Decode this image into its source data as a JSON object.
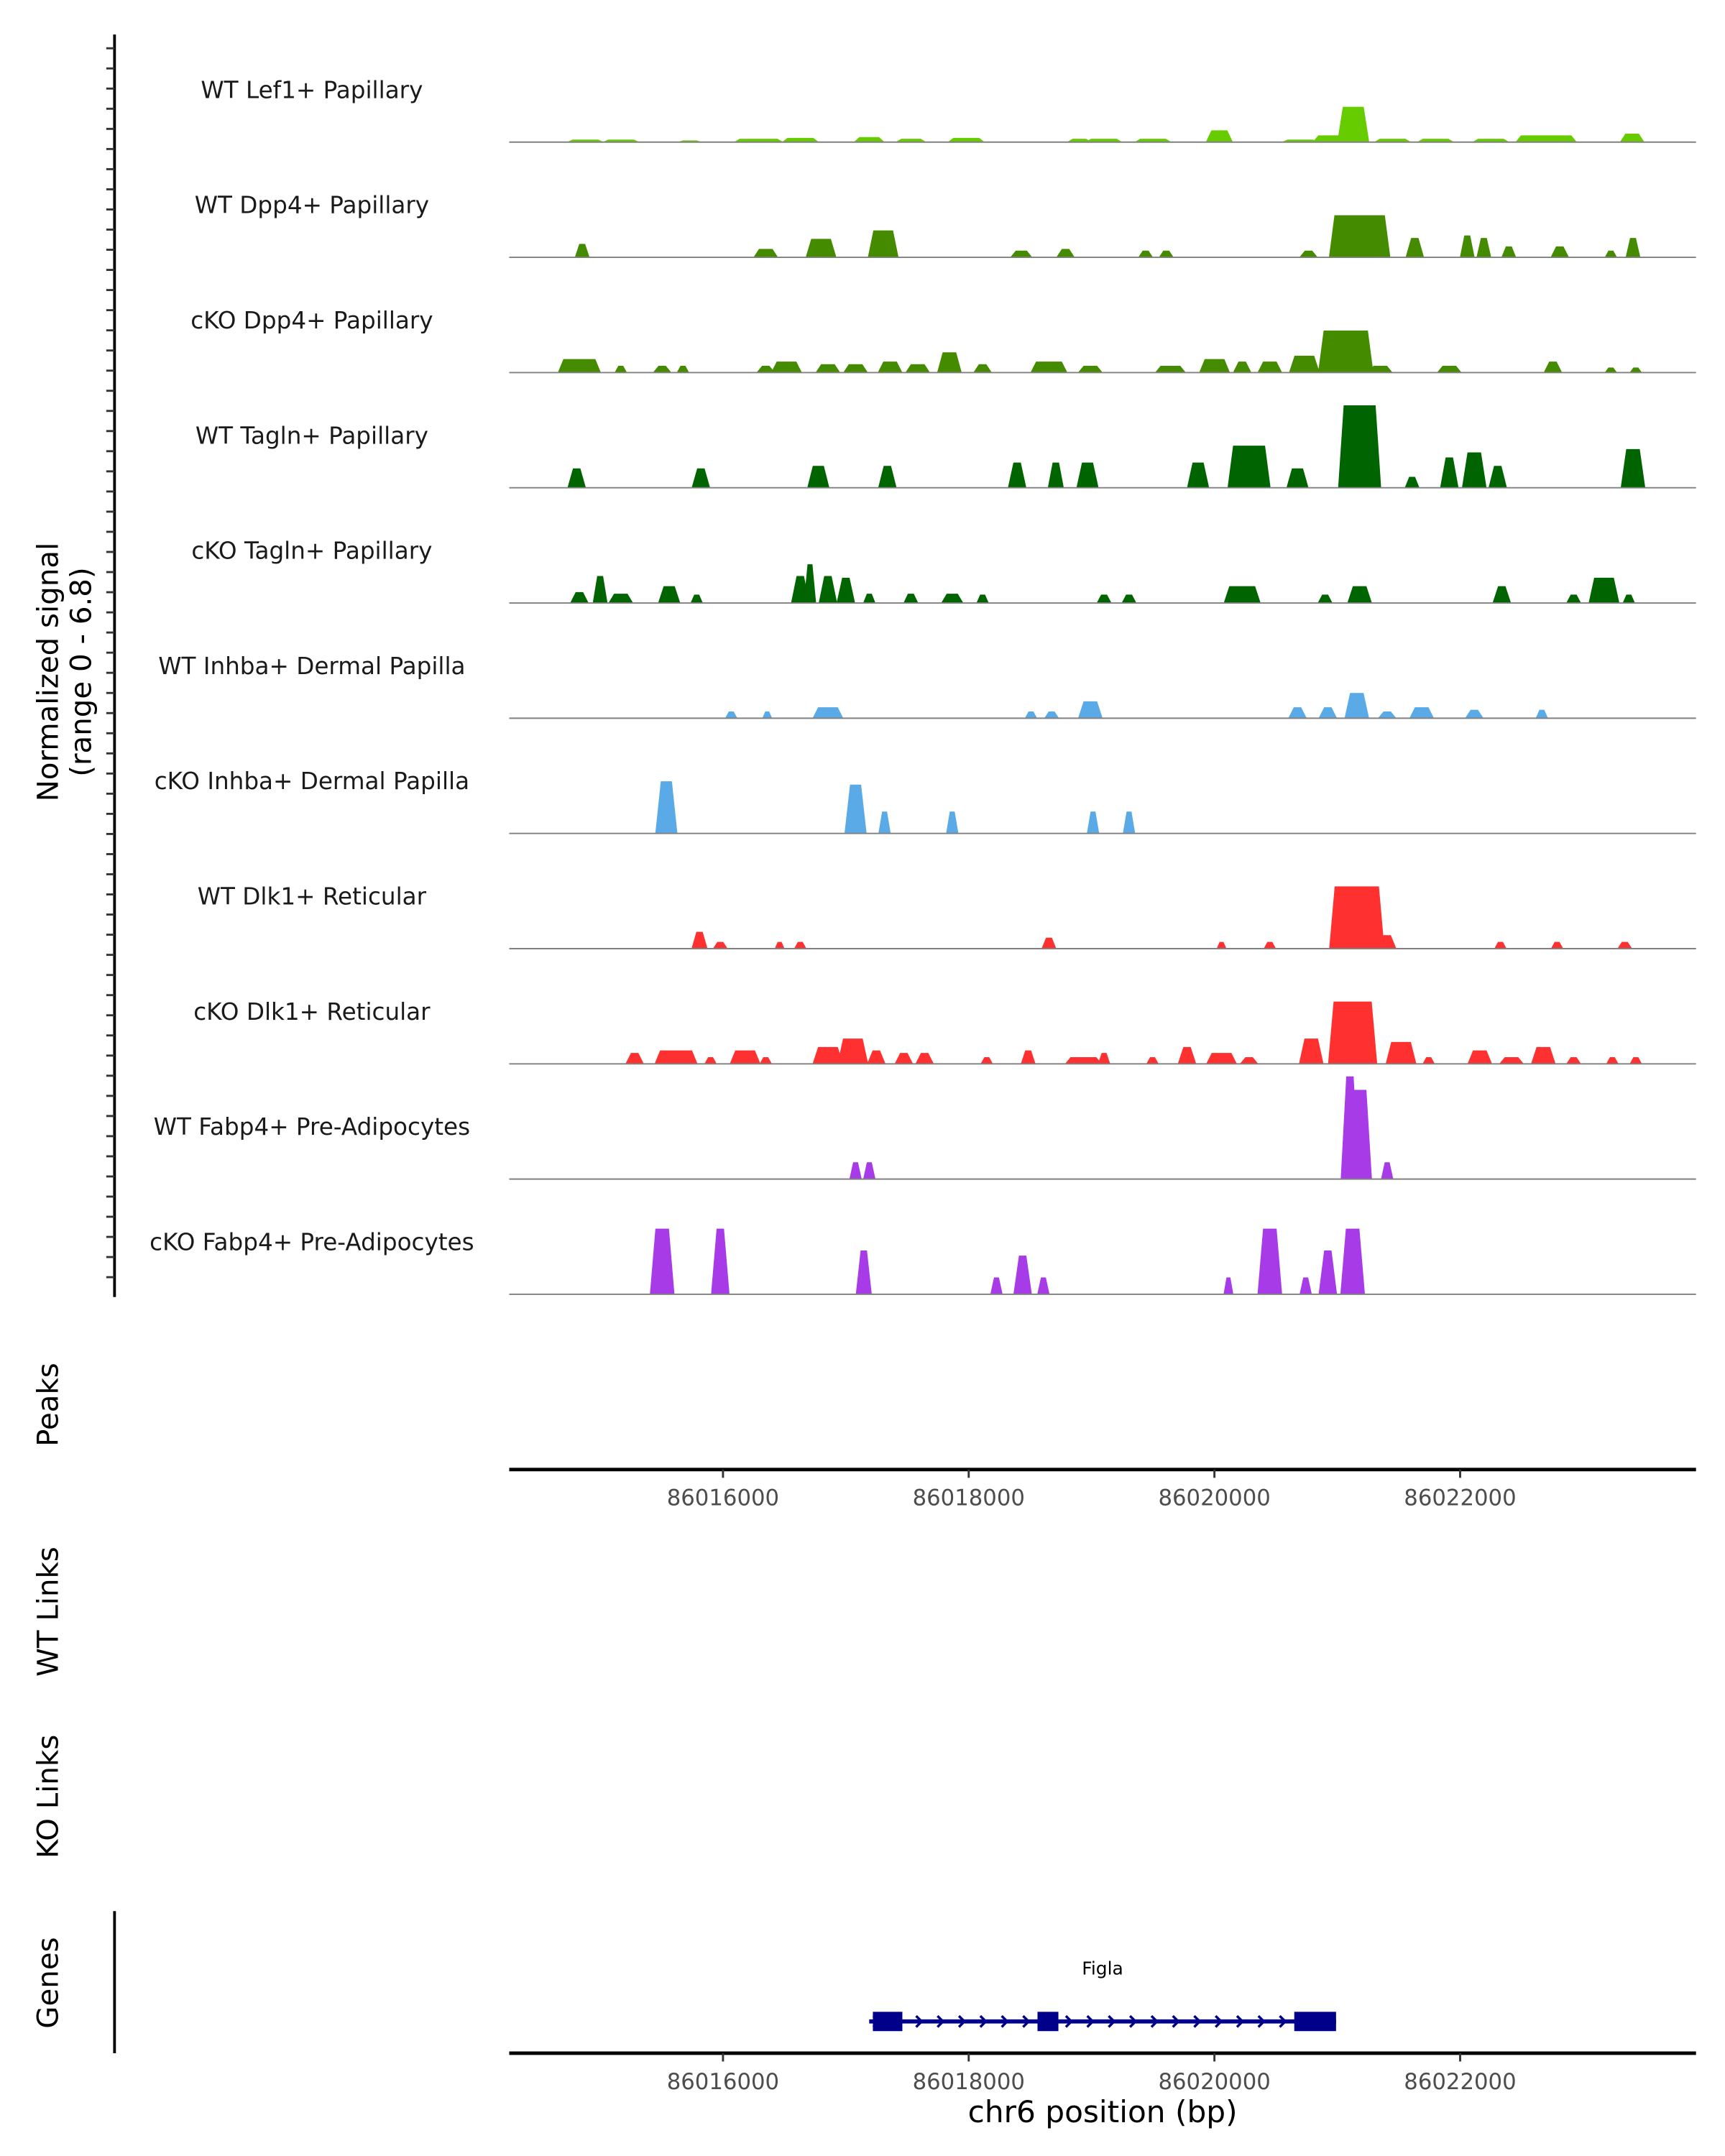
{
  "chart_data": {
    "type": "area",
    "title": "",
    "ylabel": "Normalized signal",
    "ylabel_range": "(range 0 - 6.8)",
    "ylim": [
      0,
      6.8
    ],
    "xlabel": "chr6 position (bp)",
    "xlim": [
      86014260,
      86023920
    ],
    "xticks": [
      86016000,
      86018000,
      86020000,
      86022000
    ],
    "xtick_labels": [
      "86016000",
      "86018000",
      "86020000",
      "86022000"
    ],
    "peak_format": "[center_bp, width_bp, signal]",
    "tracks": [
      {
        "name": "WT Lef1+ Papillary",
        "color": "#66CC00",
        "peaks": [
          [
            86014880,
            300,
            0.15
          ],
          [
            86015170,
            300,
            0.15
          ],
          [
            86015730,
            200,
            0.1
          ],
          [
            86016290,
            400,
            0.2
          ],
          [
            86016630,
            300,
            0.25
          ],
          [
            86017190,
            250,
            0.3
          ],
          [
            86017530,
            250,
            0.2
          ],
          [
            86017980,
            300,
            0.25
          ],
          [
            86018900,
            200,
            0.2
          ],
          [
            86019100,
            300,
            0.2
          ],
          [
            86019500,
            300,
            0.2
          ],
          [
            86020040,
            220,
            0.7
          ],
          [
            86020700,
            300,
            0.15
          ],
          [
            86020950,
            300,
            0.4
          ],
          [
            86021130,
            260,
            2.1
          ],
          [
            86021450,
            300,
            0.2
          ],
          [
            86021800,
            300,
            0.2
          ],
          [
            86022250,
            300,
            0.2
          ],
          [
            86022700,
            500,
            0.4
          ],
          [
            86023400,
            200,
            0.5
          ]
        ]
      },
      {
        "name": "WT Dpp4+ Papillary",
        "color": "#458B00",
        "peaks": [
          [
            86014854,
            120,
            0.8
          ],
          [
            86016348,
            200,
            0.5
          ],
          [
            86016798,
            250,
            1.1
          ],
          [
            86017304,
            250,
            1.6
          ],
          [
            86018428,
            180,
            0.4
          ],
          [
            86018788,
            150,
            0.5
          ],
          [
            86019440,
            120,
            0.4
          ],
          [
            86019608,
            120,
            0.4
          ],
          [
            86020766,
            150,
            0.4
          ],
          [
            86021182,
            500,
            2.5
          ],
          [
            86021631,
            150,
            1.15
          ],
          [
            86022058,
            120,
            1.3
          ],
          [
            86022193,
            120,
            1.15
          ],
          [
            86022396,
            120,
            0.65
          ],
          [
            86022811,
            150,
            0.65
          ],
          [
            86023227,
            100,
            0.4
          ],
          [
            86023407,
            120,
            1.15
          ]
        ]
      },
      {
        "name": "cKO Dpp4+ Papillary",
        "color": "#458B00",
        "peaks": [
          [
            86014831,
            350,
            0.8
          ],
          [
            86015168,
            100,
            0.4
          ],
          [
            86015505,
            150,
            0.4
          ],
          [
            86015674,
            100,
            0.4
          ],
          [
            86016348,
            150,
            0.4
          ],
          [
            86016517,
            250,
            0.65
          ],
          [
            86016854,
            200,
            0.5
          ],
          [
            86017079,
            200,
            0.5
          ],
          [
            86017360,
            200,
            0.65
          ],
          [
            86017585,
            200,
            0.5
          ],
          [
            86017843,
            200,
            1.2
          ],
          [
            86018113,
            150,
            0.5
          ],
          [
            86018653,
            300,
            0.65
          ],
          [
            86018990,
            200,
            0.4
          ],
          [
            86019642,
            250,
            0.4
          ],
          [
            86020001,
            250,
            0.8
          ],
          [
            86020226,
            150,
            0.65
          ],
          [
            86020451,
            200,
            0.65
          ],
          [
            86020732,
            250,
            1.0
          ],
          [
            86021069,
            450,
            2.5
          ],
          [
            86021350,
            200,
            0.4
          ],
          [
            86021912,
            200,
            0.4
          ],
          [
            86022755,
            150,
            0.65
          ],
          [
            86023227,
            100,
            0.3
          ],
          [
            86023430,
            100,
            0.3
          ]
        ]
      },
      {
        "name": "WT Tagln+ Papillary",
        "color": "#006400",
        "peaks": [
          [
            86014809,
            150,
            1.15
          ],
          [
            86015820,
            150,
            1.15
          ],
          [
            86016776,
            180,
            1.3
          ],
          [
            86017338,
            150,
            1.3
          ],
          [
            86018394,
            150,
            1.5
          ],
          [
            86018709,
            130,
            1.5
          ],
          [
            86018967,
            180,
            1.5
          ],
          [
            86019867,
            180,
            1.5
          ],
          [
            86020282,
            350,
            2.5
          ],
          [
            86020676,
            180,
            1.15
          ],
          [
            86021182,
            350,
            4.9
          ],
          [
            86021609,
            120,
            0.65
          ],
          [
            86021912,
            150,
            1.8
          ],
          [
            86022115,
            200,
            2.1
          ],
          [
            86022306,
            150,
            1.3
          ],
          [
            86023407,
            200,
            2.3
          ]
        ]
      },
      {
        "name": "cKO Tagln+ Papillary",
        "color": "#006400",
        "peaks": [
          [
            86014831,
            150,
            0.65
          ],
          [
            86015000,
            120,
            1.6
          ],
          [
            86015168,
            200,
            0.55
          ],
          [
            86015562,
            180,
            1.0
          ],
          [
            86015786,
            100,
            0.5
          ],
          [
            86016629,
            150,
            1.6
          ],
          [
            86016708,
            100,
            2.3
          ],
          [
            86016854,
            150,
            1.6
          ],
          [
            86017000,
            150,
            1.5
          ],
          [
            86017191,
            100,
            0.55
          ],
          [
            86017529,
            120,
            0.55
          ],
          [
            86017866,
            180,
            0.55
          ],
          [
            86018113,
            100,
            0.5
          ],
          [
            86019102,
            120,
            0.5
          ],
          [
            86019305,
            120,
            0.5
          ],
          [
            86020226,
            300,
            1.0
          ],
          [
            86020901,
            120,
            0.5
          ],
          [
            86021182,
            200,
            1.0
          ],
          [
            86022339,
            150,
            1.0
          ],
          [
            86022924,
            120,
            0.5
          ],
          [
            86023171,
            250,
            1.5
          ],
          [
            86023373,
            100,
            0.5
          ]
        ]
      },
      {
        "name": "WT Inhba+ Dermal Papilla",
        "color": "#5AAAE8",
        "peaks": [
          [
            86016067,
            100,
            0.4
          ],
          [
            86016360,
            80,
            0.4
          ],
          [
            86016854,
            250,
            0.65
          ],
          [
            86018507,
            100,
            0.4
          ],
          [
            86018675,
            120,
            0.4
          ],
          [
            86018990,
            200,
            1.0
          ],
          [
            86020676,
            150,
            0.65
          ],
          [
            86020923,
            150,
            0.65
          ],
          [
            86021159,
            200,
            1.5
          ],
          [
            86021406,
            150,
            0.4
          ],
          [
            86021687,
            200,
            0.65
          ],
          [
            86022115,
            150,
            0.5
          ],
          [
            86022665,
            100,
            0.5
          ]
        ]
      },
      {
        "name": "cKO Inhba+ Dermal Papilla",
        "color": "#5AAAE8",
        "peaks": [
          [
            86015539,
            180,
            3.1
          ],
          [
            86017079,
            180,
            2.9
          ],
          [
            86017315,
            100,
            1.3
          ],
          [
            86017866,
            100,
            1.3
          ],
          [
            86019012,
            100,
            1.3
          ],
          [
            86019305,
            100,
            1.3
          ]
        ]
      },
      {
        "name": "WT Dlk1+ Reticular",
        "color": "#FF3030",
        "peaks": [
          [
            86015809,
            130,
            1.0
          ],
          [
            86015978,
            120,
            0.4
          ],
          [
            86016461,
            80,
            0.4
          ],
          [
            86016629,
            100,
            0.4
          ],
          [
            86018653,
            120,
            0.65
          ],
          [
            86020058,
            80,
            0.4
          ],
          [
            86020451,
            100,
            0.4
          ],
          [
            86021159,
            450,
            3.7
          ],
          [
            86021406,
            150,
            0.8
          ],
          [
            86022328,
            100,
            0.4
          ],
          [
            86022789,
            100,
            0.4
          ],
          [
            86023340,
            120,
            0.4
          ]
        ]
      },
      {
        "name": "cKO Dlk1+ Reticular",
        "color": "#FF3030",
        "peaks": [
          [
            86015281,
            150,
            0.65
          ],
          [
            86015618,
            350,
            0.8
          ],
          [
            86015899,
            100,
            0.4
          ],
          [
            86016180,
            250,
            0.8
          ],
          [
            86016348,
            100,
            0.4
          ],
          [
            86016854,
            250,
            1.0
          ],
          [
            86017057,
            250,
            1.5
          ],
          [
            86017248,
            150,
            0.8
          ],
          [
            86017472,
            150,
            0.65
          ],
          [
            86017641,
            150,
            0.65
          ],
          [
            86018147,
            100,
            0.4
          ],
          [
            86018484,
            120,
            0.8
          ],
          [
            86018934,
            300,
            0.4
          ],
          [
            86019102,
            100,
            0.65
          ],
          [
            86019496,
            100,
            0.4
          ],
          [
            86019777,
            150,
            1.0
          ],
          [
            86020058,
            250,
            0.65
          ],
          [
            86020282,
            150,
            0.4
          ],
          [
            86020788,
            200,
            1.5
          ],
          [
            86021125,
            400,
            3.7
          ],
          [
            86021519,
            250,
            1.3
          ],
          [
            86021744,
            100,
            0.4
          ],
          [
            86022160,
            200,
            0.8
          ],
          [
            86022418,
            200,
            0.4
          ],
          [
            86022677,
            200,
            1.0
          ],
          [
            86022924,
            120,
            0.4
          ],
          [
            86023239,
            100,
            0.4
          ],
          [
            86023430,
            100,
            0.4
          ]
        ]
      },
      {
        "name": "WT Fabp4+ Pre-Adipocytes",
        "color": "#A83BE8",
        "peaks": [
          [
            86017079,
            100,
            1.0
          ],
          [
            86017191,
            100,
            1.0
          ],
          [
            86021103,
            150,
            6.1
          ],
          [
            86021182,
            200,
            5.3
          ],
          [
            86021406,
            100,
            1.0
          ]
        ]
      },
      {
        "name": "cKO Fabp4+ Pre-Adipocytes",
        "color": "#A83BE8",
        "peaks": [
          [
            86015505,
            200,
            3.9
          ],
          [
            86015978,
            150,
            3.9
          ],
          [
            86017146,
            130,
            2.6
          ],
          [
            86018226,
            100,
            1.0
          ],
          [
            86018439,
            150,
            2.3
          ],
          [
            86018608,
            100,
            1.0
          ],
          [
            86020114,
            80,
            1.0
          ],
          [
            86020451,
            200,
            3.9
          ],
          [
            86020743,
            100,
            1.0
          ],
          [
            86020923,
            150,
            2.6
          ],
          [
            86021125,
            200,
            3.9
          ]
        ]
      }
    ],
    "side_panels": [
      "Peaks",
      "WT Links",
      "KO Links",
      "Genes"
    ],
    "genes": [
      {
        "name": "Figla",
        "start": 86017190,
        "end": 86020990,
        "strand": "+",
        "exons": [
          [
            86017220,
            86017460
          ],
          [
            86018560,
            86018730
          ],
          [
            86020650,
            86020990
          ]
        ],
        "color": "#00008B"
      }
    ]
  }
}
